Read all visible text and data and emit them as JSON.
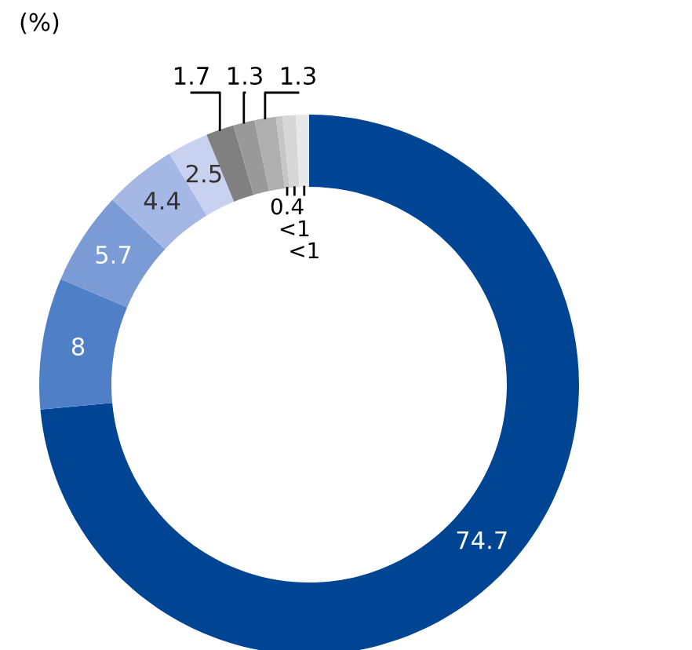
{
  "chart_data": {
    "type": "donut",
    "title": "(%)",
    "categories": [
      null,
      null,
      null,
      null,
      null,
      null,
      null,
      null,
      null,
      null,
      null
    ],
    "values": [
      74.7,
      8,
      5.7,
      4.4,
      2.5,
      1.7,
      1.3,
      1.3,
      0.4,
      0.8,
      0.8
    ],
    "value_labels": [
      "74.7",
      "8",
      "5.7",
      "4.4",
      "2.5",
      "1.7",
      "1.3",
      "1.3",
      "0.4",
      "<1",
      "<1"
    ],
    "colors": [
      "#004494",
      "#4f7fc6",
      "#7b9bd6",
      "#a5b7e5",
      "#c8d2f0",
      "#808080",
      "#999999",
      "#afafaf",
      "#c6c6c6",
      "#d6d6d6",
      "#e8e8e8"
    ]
  }
}
